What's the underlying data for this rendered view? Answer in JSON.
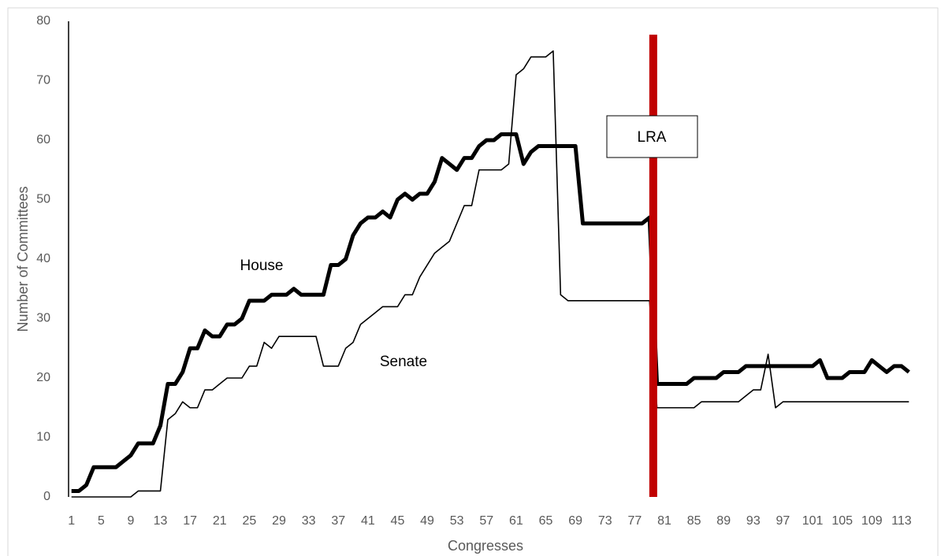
{
  "chart_data": {
    "type": "line",
    "xlabel": "Congresses",
    "ylabel": "Number of Committees",
    "x": [
      1,
      2,
      3,
      4,
      5,
      6,
      7,
      8,
      9,
      10,
      11,
      12,
      13,
      14,
      15,
      16,
      17,
      18,
      19,
      20,
      21,
      22,
      23,
      24,
      25,
      26,
      27,
      28,
      29,
      30,
      31,
      32,
      33,
      34,
      35,
      36,
      37,
      38,
      39,
      40,
      41,
      42,
      43,
      44,
      45,
      46,
      47,
      48,
      49,
      50,
      51,
      52,
      53,
      54,
      55,
      56,
      57,
      58,
      59,
      60,
      61,
      62,
      63,
      64,
      65,
      66,
      67,
      68,
      69,
      70,
      71,
      72,
      73,
      74,
      75,
      76,
      77,
      78,
      79,
      80,
      81,
      82,
      83,
      84,
      85,
      86,
      87,
      88,
      89,
      90,
      91,
      92,
      93,
      94,
      95,
      96,
      97,
      98,
      99,
      100,
      101,
      102,
      103,
      104,
      105,
      106,
      107,
      108,
      109,
      110,
      111,
      112,
      113,
      114
    ],
    "xlim": [
      0.5,
      114.5
    ],
    "xticks": [
      1,
      5,
      9,
      13,
      17,
      21,
      25,
      29,
      33,
      37,
      41,
      45,
      49,
      53,
      57,
      61,
      65,
      69,
      73,
      77,
      81,
      85,
      89,
      93,
      97,
      101,
      105,
      109,
      113
    ],
    "ylim": [
      0,
      80
    ],
    "yticks": [
      0,
      10,
      20,
      30,
      40,
      50,
      60,
      70,
      80
    ],
    "series": [
      {
        "name": "House",
        "color": "#000000",
        "width": 5,
        "values": [
          1,
          1,
          2,
          5,
          5,
          5,
          5,
          6,
          7,
          9,
          9,
          9,
          12,
          19,
          19,
          21,
          25,
          25,
          28,
          27,
          27,
          29,
          29,
          30,
          33,
          33,
          33,
          34,
          34,
          34,
          35,
          34,
          34,
          34,
          34,
          39,
          39,
          40,
          44,
          46,
          47,
          47,
          48,
          47,
          50,
          51,
          50,
          51,
          51,
          53,
          57,
          56,
          55,
          57,
          57,
          59,
          60,
          60,
          61,
          61,
          61,
          56,
          58,
          59,
          59,
          59,
          59,
          59,
          59,
          46,
          46,
          46,
          46,
          46,
          46,
          46,
          46,
          46,
          47,
          19,
          19,
          19,
          19,
          19,
          20,
          20,
          20,
          20,
          21,
          21,
          21,
          22,
          22,
          22,
          22,
          22,
          22,
          22,
          22,
          22,
          22,
          23,
          20,
          20,
          20,
          21,
          21,
          21,
          23,
          22,
          21,
          22,
          22,
          21
        ]
      },
      {
        "name": "Senate",
        "color": "#000000",
        "width": 1.6,
        "values": [
          0,
          0,
          0,
          0,
          0,
          0,
          0,
          0,
          0,
          1,
          1,
          1,
          1,
          13,
          14,
          16,
          15,
          15,
          18,
          18,
          19,
          20,
          20,
          20,
          22,
          22,
          26,
          25,
          27,
          27,
          27,
          27,
          27,
          27,
          22,
          22,
          22,
          25,
          26,
          29,
          30,
          31,
          32,
          32,
          32,
          34,
          34,
          37,
          39,
          41,
          42,
          43,
          46,
          49,
          49,
          55,
          55,
          55,
          55,
          56,
          71,
          72,
          74,
          74,
          74,
          75,
          34,
          33,
          33,
          33,
          33,
          33,
          33,
          33,
          33,
          33,
          33,
          33,
          33,
          15,
          15,
          15,
          15,
          15,
          15,
          16,
          16,
          16,
          16,
          16,
          16,
          17,
          18,
          18,
          24,
          15,
          16,
          16,
          16,
          16,
          16,
          16,
          16,
          16,
          16,
          16,
          16,
          16,
          16,
          16,
          16,
          16,
          16,
          16
        ]
      }
    ],
    "marker_line": {
      "label": "LRA",
      "x": 79.5,
      "color": "#c00000"
    }
  }
}
